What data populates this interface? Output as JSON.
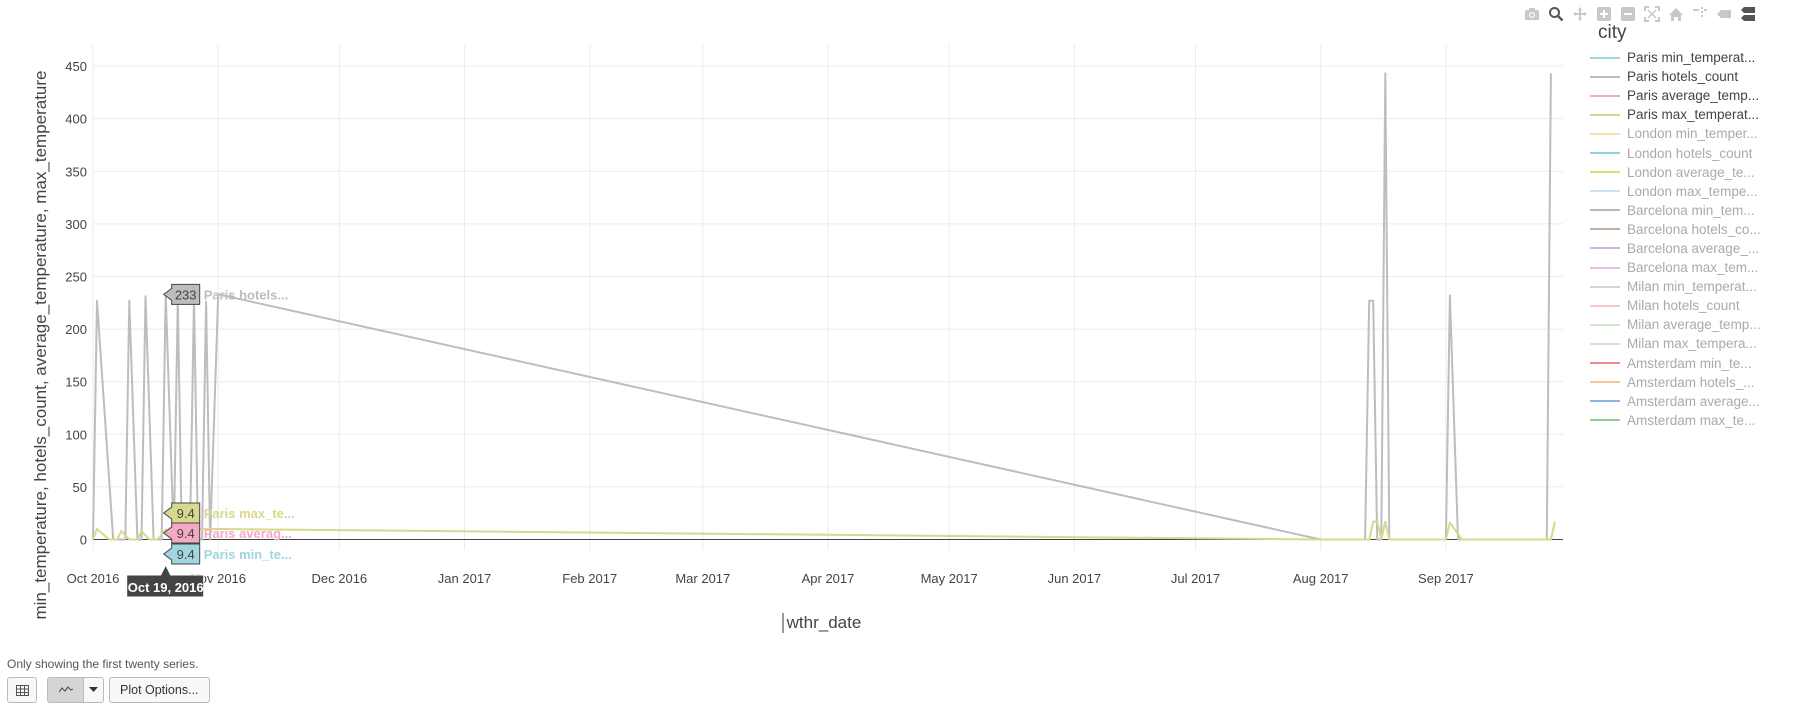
{
  "chart_data": {
    "type": "line",
    "ylabel": "min_temperature, hotels_count, average_temperature, max_temperature",
    "xlabel": "wthr_date",
    "y_ticks": [
      0,
      50,
      100,
      150,
      200,
      250,
      300,
      350,
      400,
      450
    ],
    "ylim": [
      -10,
      470
    ],
    "x_ticks": [
      "Oct 2016",
      "Nov 2016",
      "Dec 2016",
      "Jan 2017",
      "Feb 2017",
      "Mar 2017",
      "Apr 2017",
      "May 2017",
      "Jun 2017",
      "Jul 2017",
      "Aug 2017",
      "Sep 2017"
    ],
    "x_range": [
      "2016-10-01",
      "2017-09-30"
    ],
    "grid": true,
    "legend_title": "city",
    "legend_position": "right",
    "series_colors": {
      "hotels": "#bdbdbd",
      "max": "#d8d88e",
      "avg": "#f5a9c4",
      "min": "#9fd6e0"
    },
    "series": [
      {
        "name": "Paris hotels_count",
        "color_key": "hotels",
        "points": [
          [
            "2016-10-01",
            0
          ],
          [
            "2016-10-02",
            227
          ],
          [
            "2016-10-06",
            0
          ],
          [
            "2016-10-09",
            0
          ],
          [
            "2016-10-10",
            227
          ],
          [
            "2016-10-12",
            0
          ],
          [
            "2016-10-13",
            0
          ],
          [
            "2016-10-14",
            231
          ],
          [
            "2016-10-16",
            0
          ],
          [
            "2016-10-18",
            0
          ],
          [
            "2016-10-19",
            233
          ],
          [
            "2016-10-21",
            0
          ],
          [
            "2016-10-22",
            230
          ],
          [
            "2016-10-23",
            0
          ],
          [
            "2016-10-25",
            0
          ],
          [
            "2016-10-26",
            230
          ],
          [
            "2016-10-27",
            0
          ],
          [
            "2016-10-28",
            0
          ],
          [
            "2016-10-29",
            226
          ],
          [
            "2016-10-30",
            0
          ],
          [
            "2016-11-01",
            233
          ],
          [
            "2017-08-01",
            0
          ],
          [
            "2017-08-12",
            0
          ],
          [
            "2017-08-13",
            227
          ],
          [
            "2017-08-14",
            227
          ],
          [
            "2017-08-15",
            0
          ],
          [
            "2017-08-16",
            0
          ],
          [
            "2017-08-17",
            443
          ],
          [
            "2017-08-18",
            0
          ],
          [
            "2017-09-01",
            0
          ],
          [
            "2017-09-02",
            232
          ],
          [
            "2017-09-04",
            0
          ],
          [
            "2017-09-26",
            0
          ],
          [
            "2017-09-27",
            443
          ]
        ]
      },
      {
        "name": "Paris max_temperature",
        "color_key": "max",
        "points": [
          [
            "2016-10-01",
            0
          ],
          [
            "2016-10-02",
            10
          ],
          [
            "2016-10-05",
            0
          ],
          [
            "2016-10-07",
            0
          ],
          [
            "2016-10-08",
            8
          ],
          [
            "2016-10-10",
            0
          ],
          [
            "2016-10-12",
            0
          ],
          [
            "2016-10-13",
            8
          ],
          [
            "2016-10-15",
            0
          ],
          [
            "2016-10-17",
            0
          ],
          [
            "2016-10-19",
            9.4
          ],
          [
            "2016-11-01",
            10
          ],
          [
            "2017-08-01",
            0
          ],
          [
            "2017-08-13",
            0
          ],
          [
            "2017-08-14",
            17
          ],
          [
            "2017-08-15",
            17
          ],
          [
            "2017-08-16",
            0
          ],
          [
            "2017-08-17",
            17
          ],
          [
            "2017-08-18",
            0
          ],
          [
            "2017-09-01",
            0
          ],
          [
            "2017-09-02",
            16
          ],
          [
            "2017-09-05",
            0
          ],
          [
            "2017-09-27",
            0
          ],
          [
            "2017-09-28",
            17
          ]
        ]
      },
      {
        "name": "Paris average_temperature",
        "color_key": "avg",
        "points": [
          [
            "2016-10-19",
            9.4
          ]
        ]
      },
      {
        "name": "Paris min_temperature",
        "color_key": "min",
        "points": [
          [
            "2016-10-19",
            9.4
          ]
        ]
      }
    ],
    "hover": {
      "x_label": "Oct 19, 2016",
      "x": "2016-10-19",
      "items": [
        {
          "value": "233",
          "label": "Paris hotels...",
          "y": 233,
          "color_key": "hotels"
        },
        {
          "value": "9.4",
          "label": "Paris max_te...",
          "y": 9.4,
          "color_key": "max"
        },
        {
          "value": "9.4",
          "label": "Paris averag...",
          "y": 9.4,
          "color_key": "avg"
        },
        {
          "value": "9.4",
          "label": "Paris min_te...",
          "y": 9.4,
          "color_key": "min"
        }
      ]
    }
  },
  "legend": {
    "title": "city",
    "items": [
      {
        "label": "Paris min_temperat...",
        "color": "#9fd6e0",
        "active": true
      },
      {
        "label": "Paris hotels_count",
        "color": "#bdbdbd",
        "active": true
      },
      {
        "label": "Paris average_temp...",
        "color": "#f5a9c4",
        "active": true
      },
      {
        "label": "Paris max_temperat...",
        "color": "#d8d88e",
        "active": true
      },
      {
        "label": "London min_temper...",
        "color": "#f7deb0",
        "active": false
      },
      {
        "label": "London hotels_count",
        "color": "#8fd3de",
        "active": false
      },
      {
        "label": "London average_te...",
        "color": "#d9de7a",
        "active": false
      },
      {
        "label": "London max_tempe...",
        "color": "#c9e1f3",
        "active": false
      },
      {
        "label": "Barcelona min_tem...",
        "color": "#b8b8b8",
        "active": false
      },
      {
        "label": "Barcelona hotels_co...",
        "color": "#c3ada3",
        "active": false
      },
      {
        "label": "Barcelona average_...",
        "color": "#cfb6e2",
        "active": false
      },
      {
        "label": "Barcelona max_tem...",
        "color": "#efbbe0",
        "active": false
      },
      {
        "label": "Milan min_temperat...",
        "color": "#dcd2cc",
        "active": false
      },
      {
        "label": "Milan hotels_count",
        "color": "#f7c6c6",
        "active": false
      },
      {
        "label": "Milan average_temp...",
        "color": "#cde8c6",
        "active": false
      },
      {
        "label": "Milan max_tempera...",
        "color": "#dcdcdc",
        "active": false
      },
      {
        "label": "Amsterdam min_te...",
        "color": "#f08a8a",
        "active": false
      },
      {
        "label": "Amsterdam hotels_...",
        "color": "#f7c58f",
        "active": false
      },
      {
        "label": "Amsterdam average...",
        "color": "#8cb4de",
        "active": false
      },
      {
        "label": "Amsterdam max_te...",
        "color": "#8ed08e",
        "active": false
      }
    ]
  },
  "modebar": {
    "icons": [
      "camera-icon",
      "zoom-icon",
      "pan-icon",
      "zoom-in-icon",
      "zoom-out-icon",
      "autoscale-icon",
      "home-icon",
      "spike-lines-icon",
      "hover-closest-icon",
      "hover-compare-icon"
    ]
  },
  "footer": {
    "note": "Only showing the first twenty series.",
    "plot_options_label": "Plot Options..."
  }
}
